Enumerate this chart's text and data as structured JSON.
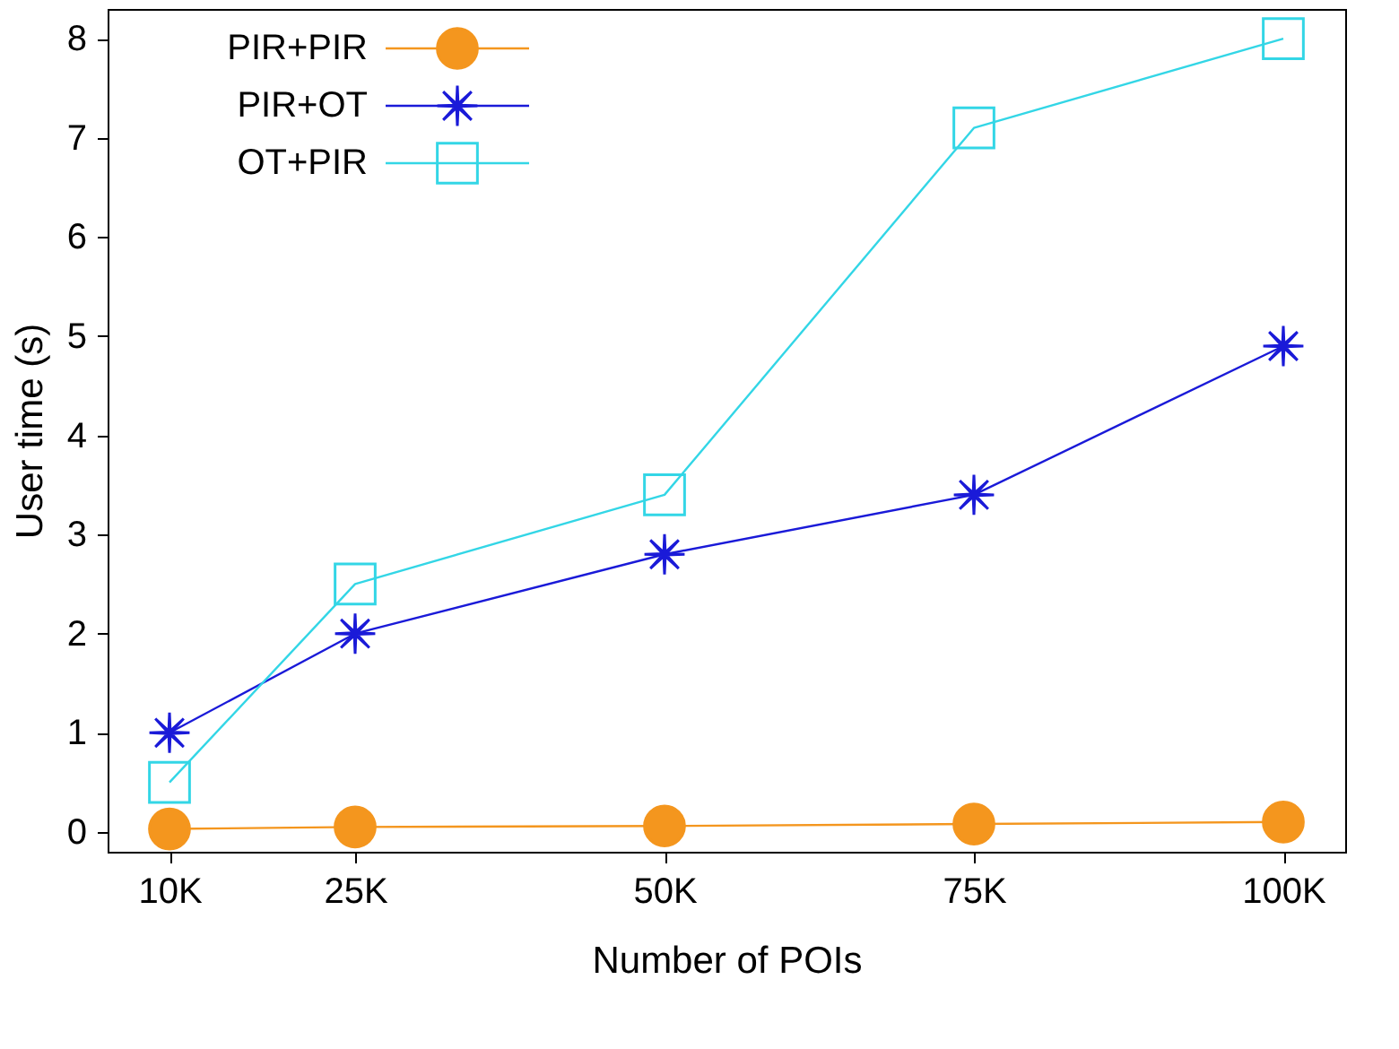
{
  "chart_data": {
    "type": "line",
    "xlabel": "Number of POIs",
    "ylabel": "User time (s)",
    "x": [
      10000,
      25000,
      50000,
      75000,
      100000
    ],
    "xlim": [
      5000,
      105000
    ],
    "xticks": [
      {
        "value": 10000,
        "label": "10K"
      },
      {
        "value": 25000,
        "label": "25K"
      },
      {
        "value": 50000,
        "label": "50K"
      },
      {
        "value": 75000,
        "label": "75K"
      },
      {
        "value": 100000,
        "label": "100K"
      }
    ],
    "ylim": [
      -0.2,
      8.3
    ],
    "yticks": [
      0,
      1,
      2,
      3,
      4,
      5,
      6,
      7,
      8
    ],
    "legend": "top left",
    "grid": false,
    "series": [
      {
        "name": "PIR+PIR",
        "color": "#f4961e",
        "marker": "circle",
        "values": [
          0.03,
          0.05,
          0.06,
          0.08,
          0.1
        ]
      },
      {
        "name": "PIR+OT",
        "color": "#1a1ad8",
        "marker": "cross",
        "values": [
          1,
          2,
          2.8,
          3.4,
          4.9
        ]
      },
      {
        "name": "OT+PIR",
        "color": "#33d6e6",
        "marker": "square",
        "values": [
          0.5,
          2.5,
          3.4,
          7.1,
          8
        ]
      }
    ]
  }
}
